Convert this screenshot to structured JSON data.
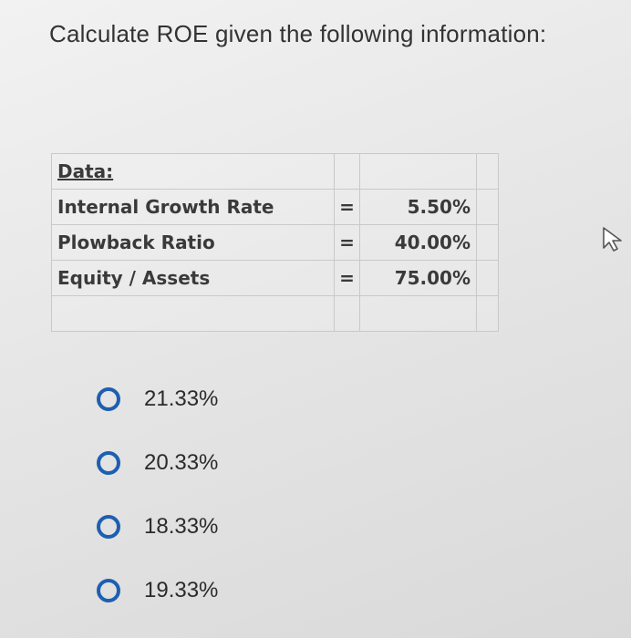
{
  "question": {
    "text": "Calculate ROE given the following information:"
  },
  "data_table": {
    "header": "Data:",
    "rows": [
      {
        "label": "Internal Growth Rate",
        "eq": "=",
        "value": "5.50%"
      },
      {
        "label": "Plowback Ratio",
        "eq": "=",
        "value": "40.00%"
      },
      {
        "label": "Equity / Assets",
        "eq": "=",
        "value": "75.00%"
      }
    ]
  },
  "options": [
    {
      "label": "21.33%"
    },
    {
      "label": "20.33%"
    },
    {
      "label": "18.33%"
    },
    {
      "label": "19.33%"
    }
  ],
  "colors": {
    "radio_accent": "#1d5fb0"
  },
  "icons": {
    "cursor": "pointer-cursor-icon"
  }
}
